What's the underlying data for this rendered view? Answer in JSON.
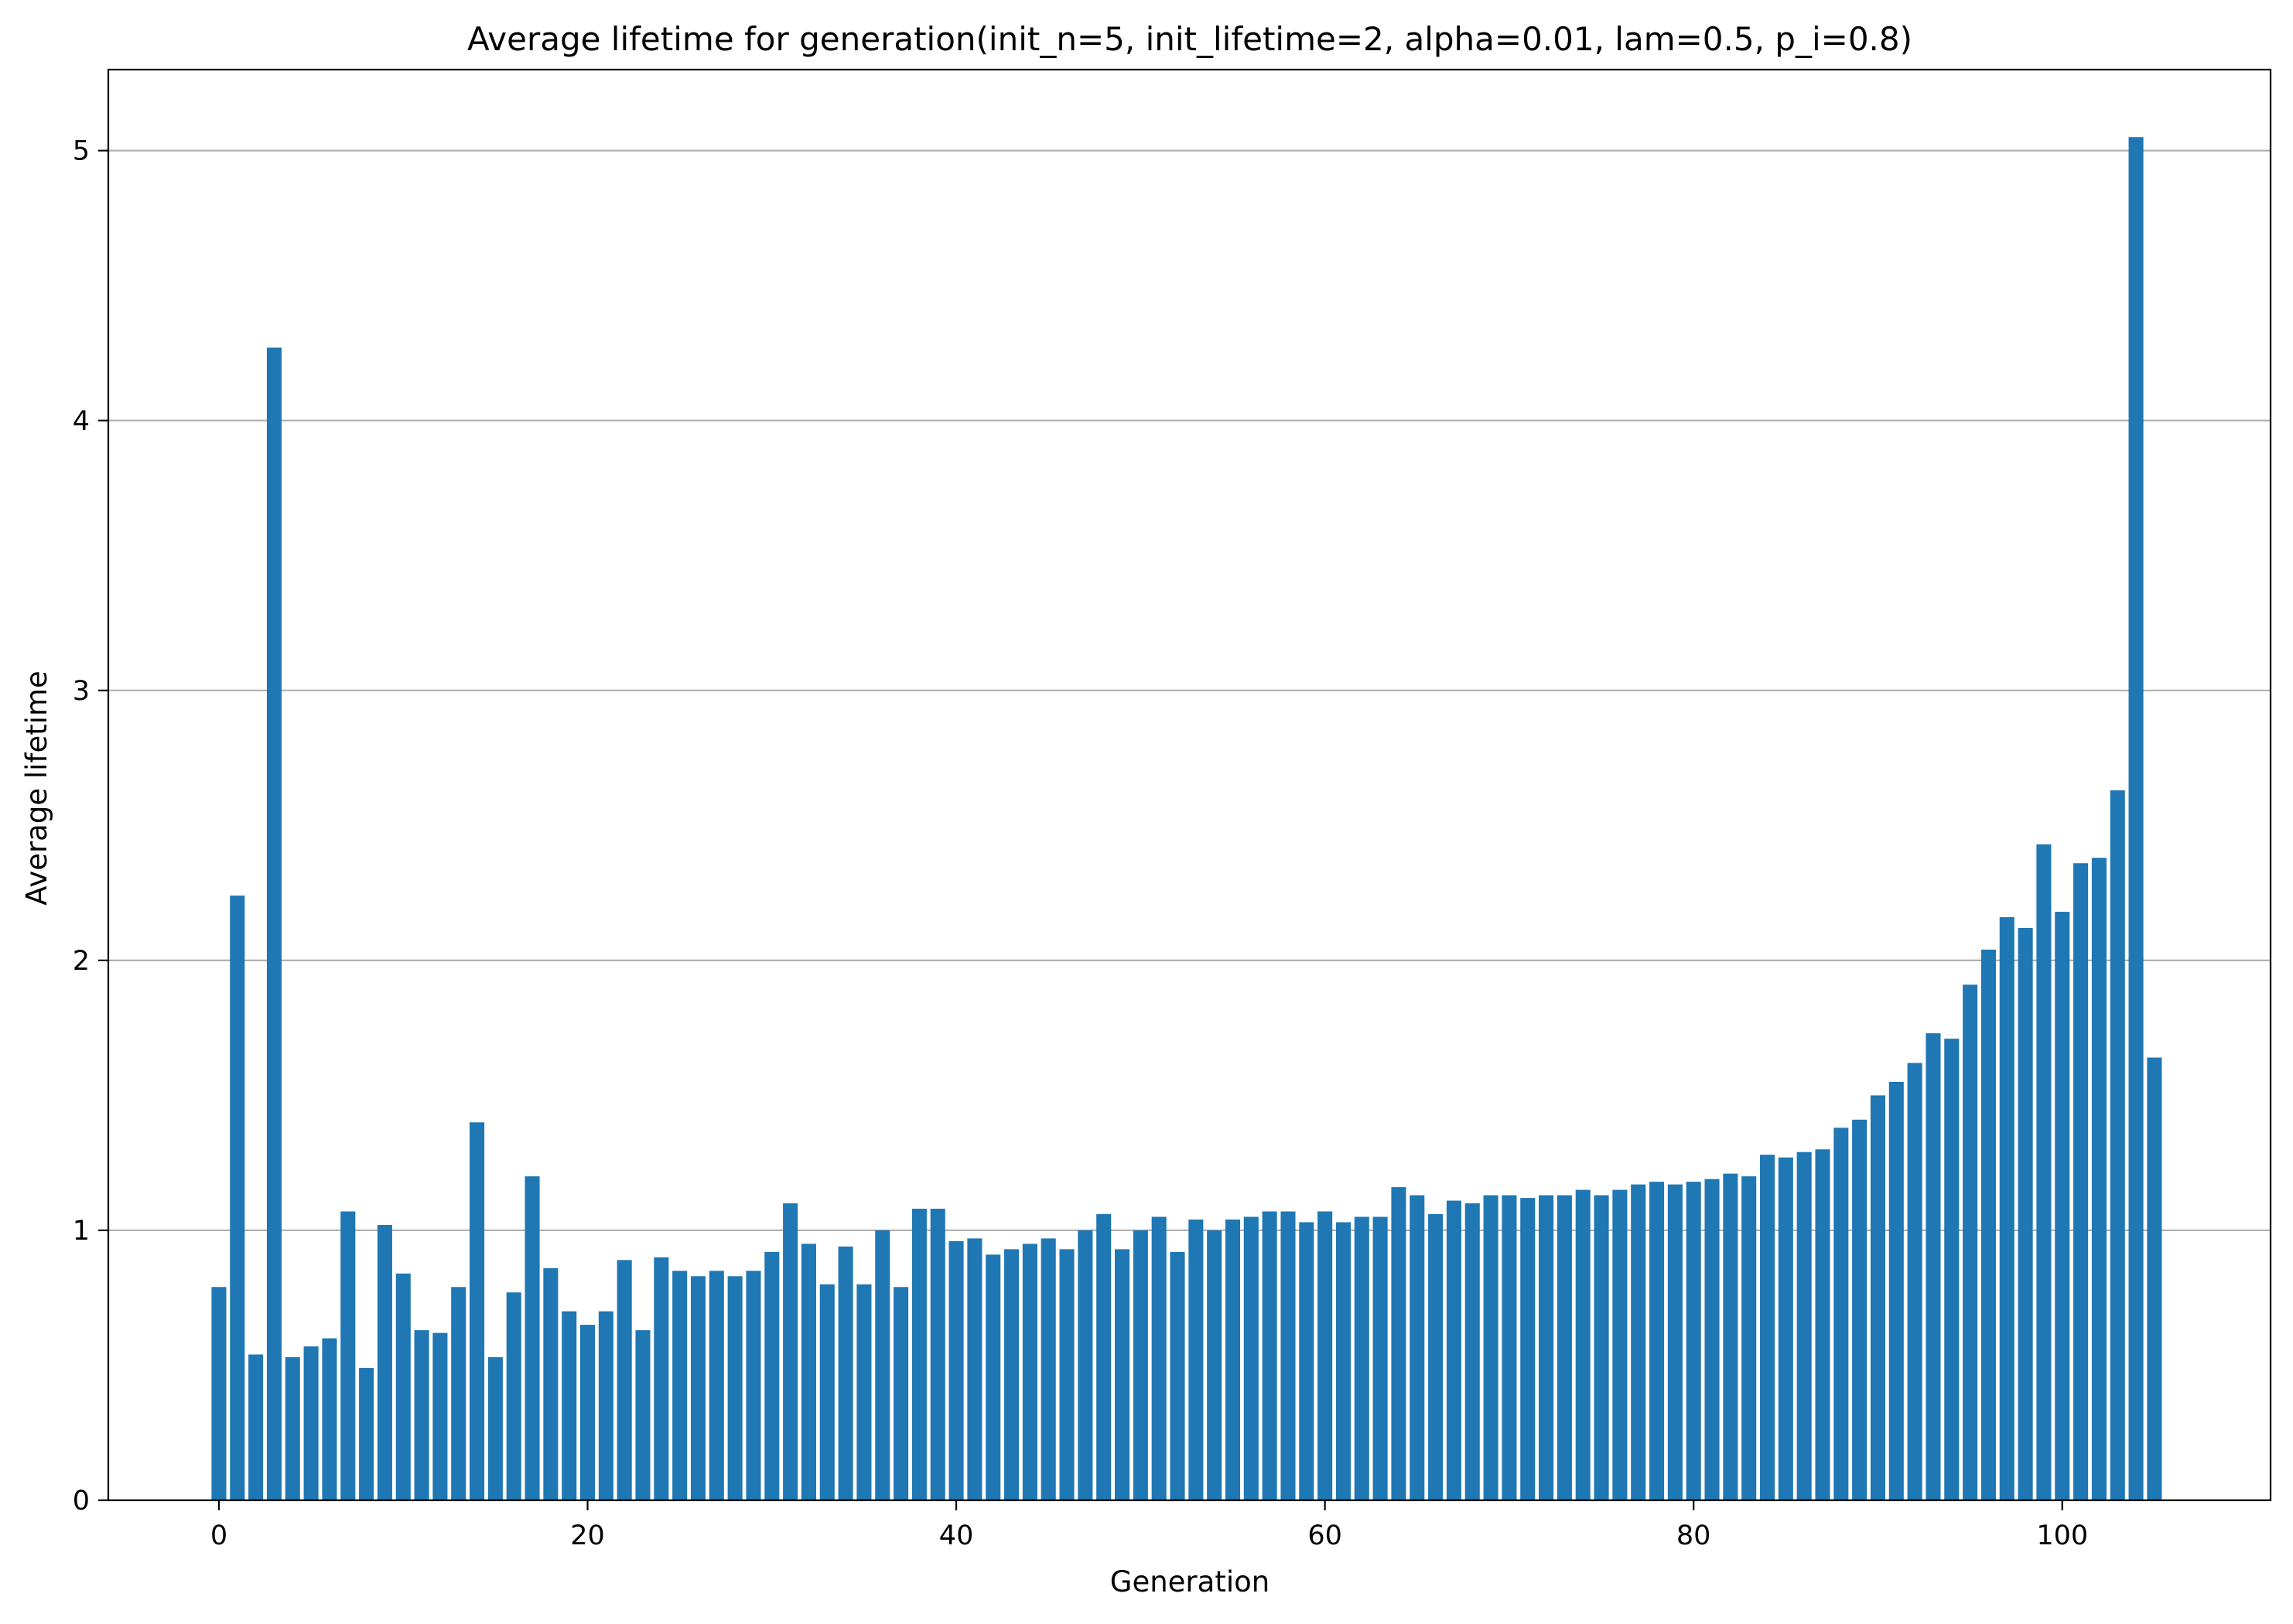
{
  "chart_data": {
    "type": "bar",
    "title": "Average lifetime for generation(init_n=5, init_lifetime=2, alpha=0.01, lam=0.5, p_i=0.8)",
    "xlabel": "Generation",
    "ylabel": "Average lifetime",
    "xlim": [
      -6,
      111.3
    ],
    "ylim": [
      0,
      5.3
    ],
    "xticks": [
      0,
      20,
      40,
      60,
      80,
      100
    ],
    "xtick_labels": [
      "0",
      "20",
      "40",
      "60",
      "80",
      "100"
    ],
    "yticks": [
      0,
      1,
      2,
      3,
      4,
      5
    ],
    "ytick_labels": [
      "0",
      "1",
      "2",
      "3",
      "4",
      "5"
    ],
    "grid": "y",
    "bar_color": "#1f77b4",
    "series": [
      {
        "x": [
          0,
          1,
          2,
          3,
          4,
          5,
          6,
          7,
          8,
          9,
          10,
          11,
          12,
          13,
          14,
          15,
          16,
          17,
          18,
          19,
          20,
          21,
          22,
          23,
          24,
          25,
          26,
          27,
          28,
          29,
          30,
          31,
          32,
          33,
          34,
          35,
          36,
          37,
          38,
          39,
          40,
          41,
          42,
          43,
          44,
          45,
          46,
          47,
          48,
          49,
          50,
          51,
          52,
          53,
          54,
          55,
          56,
          57,
          58,
          59,
          60,
          61,
          62,
          63,
          64,
          65,
          66,
          67,
          68,
          69,
          70,
          71,
          72,
          73,
          74,
          75,
          76,
          77,
          78,
          79,
          80,
          81,
          82,
          83,
          84,
          85,
          86,
          87,
          88,
          89,
          90,
          91,
          92,
          93,
          94,
          95,
          96,
          97,
          98,
          99,
          100,
          101,
          102,
          103,
          104,
          105
        ],
        "values": [
          0.79,
          2.24,
          0.54,
          4.27,
          0.53,
          0.57,
          0.6,
          1.07,
          0.49,
          1.02,
          0.84,
          0.63,
          0.62,
          0.79,
          1.4,
          0.53,
          0.77,
          1.2,
          0.86,
          0.7,
          0.65,
          0.7,
          0.89,
          0.63,
          0.9,
          0.85,
          0.83,
          0.85,
          0.83,
          0.85,
          0.92,
          1.1,
          0.95,
          0.8,
          0.94,
          0.8,
          1.0,
          0.79,
          1.08,
          1.08,
          0.96,
          0.97,
          0.91,
          0.93,
          0.95,
          0.97,
          0.93,
          1.0,
          1.06,
          0.93,
          1.0,
          1.05,
          0.92,
          1.04,
          1.0,
          1.04,
          1.05,
          1.07,
          1.07,
          1.03,
          1.07,
          1.03,
          1.05,
          1.05,
          1.16,
          1.13,
          1.06,
          1.11,
          1.1,
          1.13,
          1.13,
          1.12,
          1.13,
          1.13,
          1.15,
          1.13,
          1.15,
          1.17,
          1.18,
          1.17,
          1.18,
          1.19,
          1.21,
          1.2,
          1.28,
          1.27,
          1.29,
          1.3,
          1.38,
          1.41,
          1.5,
          1.55,
          1.62,
          1.73,
          1.71,
          1.91,
          2.04,
          2.16,
          2.12,
          2.43,
          2.18,
          2.36,
          2.38,
          2.63,
          5.05,
          1.64
        ]
      }
    ]
  }
}
